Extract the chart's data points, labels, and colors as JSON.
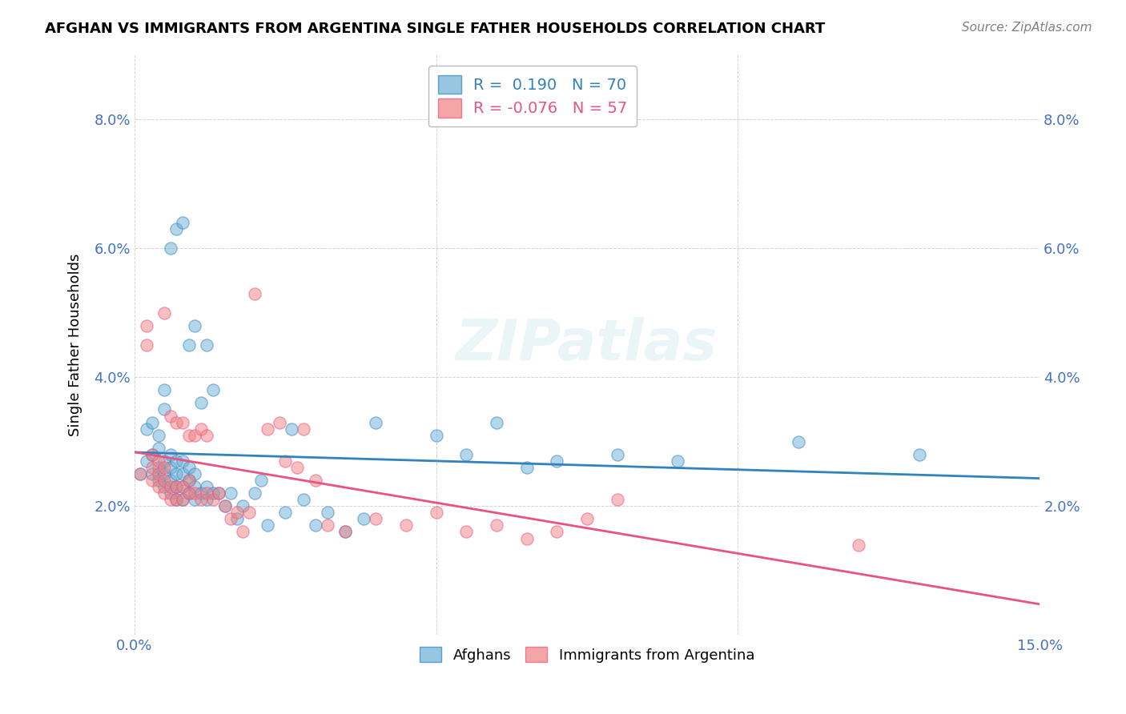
{
  "title": "AFGHAN VS IMMIGRANTS FROM ARGENTINA SINGLE FATHER HOUSEHOLDS CORRELATION CHART",
  "source": "Source: ZipAtlas.com",
  "xlabel": "",
  "ylabel": "Single Father Households",
  "xlim": [
    0.0,
    0.15
  ],
  "ylim": [
    0.0,
    0.09
  ],
  "yticks": [
    0.02,
    0.04,
    0.06,
    0.08
  ],
  "xticks": [
    0.0,
    0.05,
    0.1,
    0.15
  ],
  "xtick_labels": [
    "0.0%",
    "",
    "",
    "15.0%"
  ],
  "ytick_labels": [
    "2.0%",
    "4.0%",
    "6.0%",
    "8.0%"
  ],
  "legend_r1": "R =  0.190",
  "legend_n1": "N = 70",
  "legend_r2": "R = -0.076",
  "legend_n2": "N = 57",
  "color_blue": "#6baed6",
  "color_pink": "#f08080",
  "line_blue": "#3182bd",
  "line_pink": "#e75480",
  "watermark": "ZIPatlas",
  "afghans_x": [
    0.001,
    0.002,
    0.002,
    0.003,
    0.003,
    0.003,
    0.004,
    0.004,
    0.004,
    0.004,
    0.005,
    0.005,
    0.005,
    0.005,
    0.005,
    0.006,
    0.006,
    0.006,
    0.006,
    0.006,
    0.007,
    0.007,
    0.007,
    0.007,
    0.007,
    0.008,
    0.008,
    0.008,
    0.008,
    0.008,
    0.009,
    0.009,
    0.009,
    0.009,
    0.01,
    0.01,
    0.01,
    0.01,
    0.011,
    0.011,
    0.012,
    0.012,
    0.012,
    0.013,
    0.013,
    0.014,
    0.015,
    0.016,
    0.017,
    0.018,
    0.02,
    0.021,
    0.022,
    0.025,
    0.026,
    0.028,
    0.03,
    0.032,
    0.035,
    0.038,
    0.04,
    0.05,
    0.055,
    0.06,
    0.065,
    0.07,
    0.08,
    0.09,
    0.11,
    0.13
  ],
  "afghans_y": [
    0.025,
    0.027,
    0.032,
    0.025,
    0.028,
    0.033,
    0.024,
    0.026,
    0.029,
    0.031,
    0.023,
    0.025,
    0.027,
    0.035,
    0.038,
    0.022,
    0.024,
    0.026,
    0.028,
    0.06,
    0.021,
    0.023,
    0.025,
    0.027,
    0.063,
    0.021,
    0.023,
    0.025,
    0.027,
    0.064,
    0.022,
    0.024,
    0.026,
    0.045,
    0.021,
    0.023,
    0.025,
    0.048,
    0.022,
    0.036,
    0.021,
    0.023,
    0.045,
    0.022,
    0.038,
    0.022,
    0.02,
    0.022,
    0.018,
    0.02,
    0.022,
    0.024,
    0.017,
    0.019,
    0.032,
    0.021,
    0.017,
    0.019,
    0.016,
    0.018,
    0.033,
    0.031,
    0.028,
    0.033,
    0.026,
    0.027,
    0.028,
    0.027,
    0.03,
    0.028
  ],
  "argentina_x": [
    0.001,
    0.002,
    0.002,
    0.003,
    0.003,
    0.003,
    0.004,
    0.004,
    0.004,
    0.005,
    0.005,
    0.005,
    0.005,
    0.006,
    0.006,
    0.006,
    0.007,
    0.007,
    0.007,
    0.008,
    0.008,
    0.008,
    0.009,
    0.009,
    0.009,
    0.01,
    0.01,
    0.011,
    0.011,
    0.012,
    0.012,
    0.013,
    0.014,
    0.015,
    0.016,
    0.017,
    0.018,
    0.019,
    0.02,
    0.022,
    0.024,
    0.025,
    0.027,
    0.028,
    0.03,
    0.032,
    0.035,
    0.04,
    0.045,
    0.05,
    0.055,
    0.06,
    0.065,
    0.07,
    0.075,
    0.08,
    0.12
  ],
  "argentina_y": [
    0.025,
    0.045,
    0.048,
    0.024,
    0.026,
    0.028,
    0.023,
    0.025,
    0.027,
    0.022,
    0.024,
    0.026,
    0.05,
    0.021,
    0.023,
    0.034,
    0.021,
    0.023,
    0.033,
    0.021,
    0.023,
    0.033,
    0.022,
    0.024,
    0.031,
    0.022,
    0.031,
    0.021,
    0.032,
    0.022,
    0.031,
    0.021,
    0.022,
    0.02,
    0.018,
    0.019,
    0.016,
    0.019,
    0.053,
    0.032,
    0.033,
    0.027,
    0.026,
    0.032,
    0.024,
    0.017,
    0.016,
    0.018,
    0.017,
    0.019,
    0.016,
    0.017,
    0.015,
    0.016,
    0.018,
    0.021,
    0.014
  ]
}
